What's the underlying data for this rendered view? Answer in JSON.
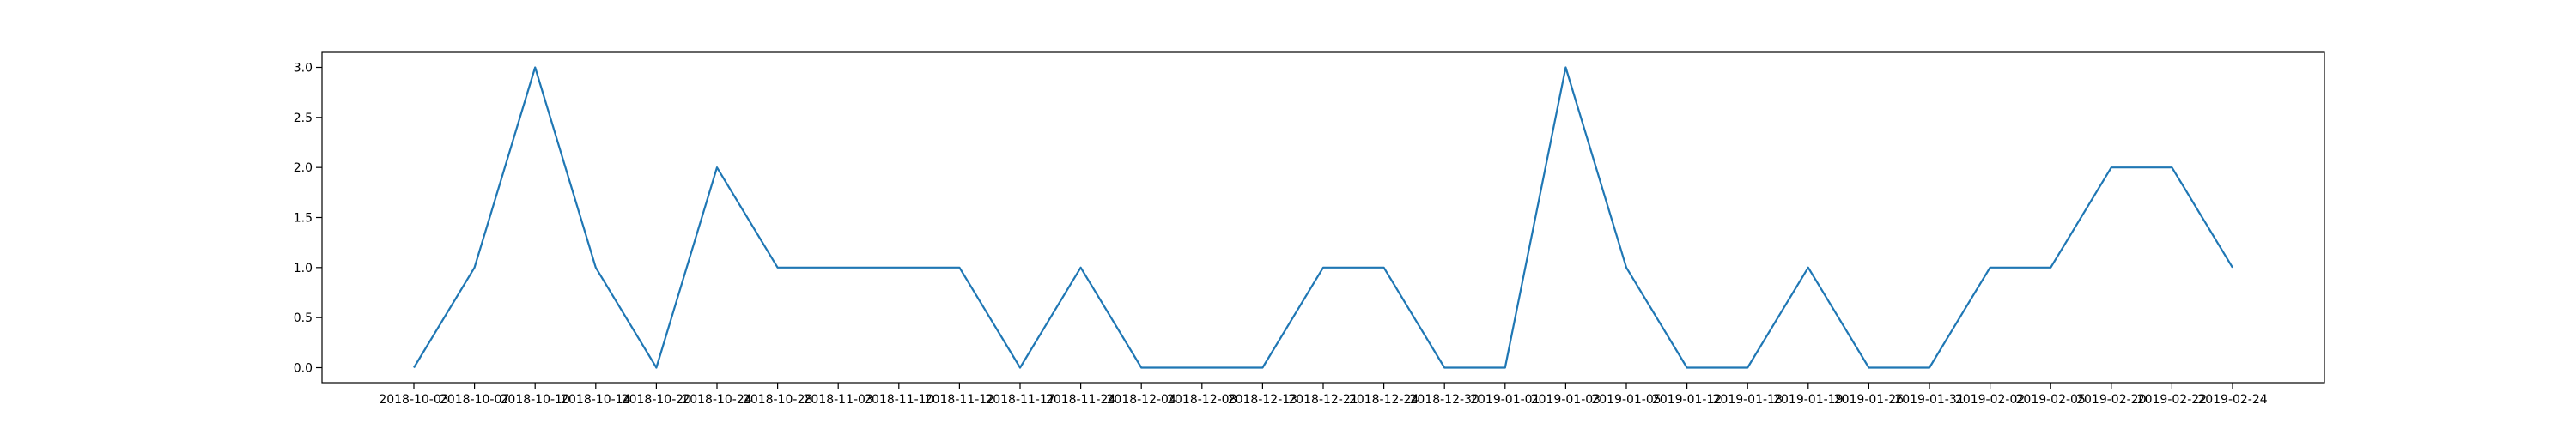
{
  "chart_data": {
    "type": "line",
    "title": "",
    "xlabel": "",
    "ylabel": "",
    "grid": false,
    "legend": "none",
    "x": [
      "2018-10-03",
      "2018-10-07",
      "2018-10-10",
      "2018-10-14",
      "2018-10-20",
      "2018-10-24",
      "2018-10-28",
      "2018-11-03",
      "2018-11-10",
      "2018-11-12",
      "2018-11-17",
      "2018-11-24",
      "2018-12-04",
      "2018-12-08",
      "2018-12-13",
      "2018-12-21",
      "2018-12-24",
      "2018-12-30",
      "2019-01-01",
      "2019-01-03",
      "2019-01-05",
      "2019-01-12",
      "2019-01-18",
      "2019-01-19",
      "2019-01-26",
      "2019-01-31",
      "2019-02-02",
      "2019-02-05",
      "2019-02-20",
      "2019-02-22",
      "2019-02-24"
    ],
    "series": [
      {
        "color": "#1f77b4",
        "values": [
          0,
          1,
          3,
          1,
          0,
          2,
          1,
          1,
          1,
          1,
          0,
          1,
          0,
          0,
          0,
          1,
          1,
          0,
          0,
          3,
          1,
          0,
          0,
          1,
          0,
          0,
          1,
          1,
          2,
          2,
          1
        ]
      }
    ],
    "ylim": [
      -0.15,
      3.15
    ],
    "yticks": [
      0.0,
      0.5,
      1.0,
      1.5,
      2.0,
      2.5,
      3.0
    ],
    "ytick_labels": [
      "0.0",
      "0.5",
      "1.0",
      "1.5",
      "2.0",
      "2.5",
      "3.0"
    ]
  }
}
